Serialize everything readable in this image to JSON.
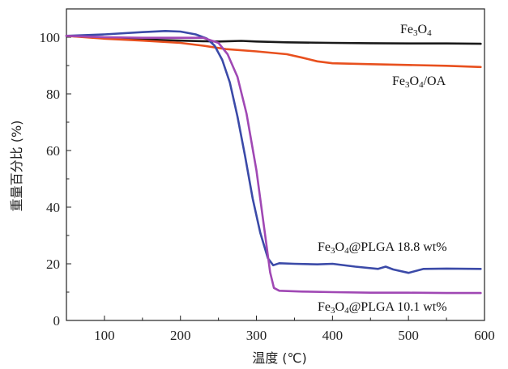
{
  "chart_data": {
    "type": "line",
    "xlabel": "温度 (℃)",
    "ylabel": "重量百分比 (%)",
    "xlim": [
      50,
      600
    ],
    "ylim": [
      0,
      110
    ],
    "xticks": [
      100,
      200,
      300,
      400,
      500,
      600
    ],
    "yticks": [
      0,
      20,
      40,
      60,
      80,
      100
    ],
    "grid": false,
    "legend": "labels beside curves",
    "series": [
      {
        "name": "Fe3O4",
        "label_parts": [
          [
            "Fe",
            false
          ],
          [
            "3",
            true
          ],
          [
            "O",
            false
          ],
          [
            "4",
            true
          ]
        ],
        "color": "#1a1a1a",
        "x": [
          50,
          100,
          150,
          200,
          230,
          250,
          280,
          300,
          340,
          400,
          450,
          500,
          550,
          595
        ],
        "y": [
          100.5,
          99.8,
          99.2,
          98.8,
          98.6,
          98.5,
          98.7,
          98.5,
          98.2,
          98.0,
          97.9,
          97.8,
          97.8,
          97.7
        ]
      },
      {
        "name": "Fe3O4/OA",
        "label_parts": [
          [
            "Fe",
            false
          ],
          [
            "3",
            true
          ],
          [
            "O",
            false
          ],
          [
            "4",
            true
          ],
          [
            "/OA",
            false
          ]
        ],
        "color": "#e8501e",
        "x": [
          50,
          100,
          150,
          200,
          230,
          260,
          300,
          340,
          360,
          380,
          400,
          450,
          500,
          550,
          595
        ],
        "y": [
          100.5,
          99.5,
          98.8,
          98.0,
          97.0,
          95.8,
          95.0,
          94.0,
          92.8,
          91.5,
          90.8,
          90.5,
          90.2,
          89.9,
          89.5
        ]
      },
      {
        "name": "Fe3O4@PLGA 18.8 wt%",
        "label_parts": [
          [
            "Fe",
            false
          ],
          [
            "3",
            true
          ],
          [
            "O",
            false
          ],
          [
            "4",
            true
          ],
          [
            "@PLGA 18.8 wt%",
            false
          ]
        ],
        "color": "#3b4aa8",
        "x": [
          50,
          100,
          150,
          180,
          200,
          220,
          235,
          245,
          255,
          265,
          275,
          285,
          295,
          305,
          315,
          322,
          330,
          350,
          380,
          400,
          430,
          460,
          470,
          480,
          500,
          520,
          550,
          595
        ],
        "y": [
          100.5,
          101.0,
          101.8,
          102.2,
          102.0,
          101.0,
          99.5,
          97.0,
          92.0,
          84.0,
          72.0,
          58.0,
          43.0,
          31.0,
          22.0,
          19.5,
          20.2,
          20.0,
          19.8,
          20.0,
          19.0,
          18.2,
          19.0,
          18.0,
          16.8,
          18.2,
          18.3,
          18.2
        ]
      },
      {
        "name": "Fe3O4@PLGA 10.1 wt%",
        "label_parts": [
          [
            "Fe",
            false
          ],
          [
            "3",
            true
          ],
          [
            "O",
            false
          ],
          [
            "4",
            true
          ],
          [
            "@PLGA 10.1 wt%",
            false
          ]
        ],
        "color": "#a048b4",
        "x": [
          50,
          100,
          150,
          200,
          230,
          250,
          262,
          275,
          287,
          300,
          310,
          318,
          323,
          330,
          360,
          400,
          450,
          500,
          550,
          595
        ],
        "y": [
          100.5,
          100.0,
          99.8,
          99.8,
          99.8,
          98.0,
          94.0,
          86.0,
          73.0,
          53.0,
          33.0,
          17.0,
          11.5,
          10.5,
          10.2,
          10.0,
          9.8,
          9.8,
          9.7,
          9.7
        ]
      }
    ]
  }
}
